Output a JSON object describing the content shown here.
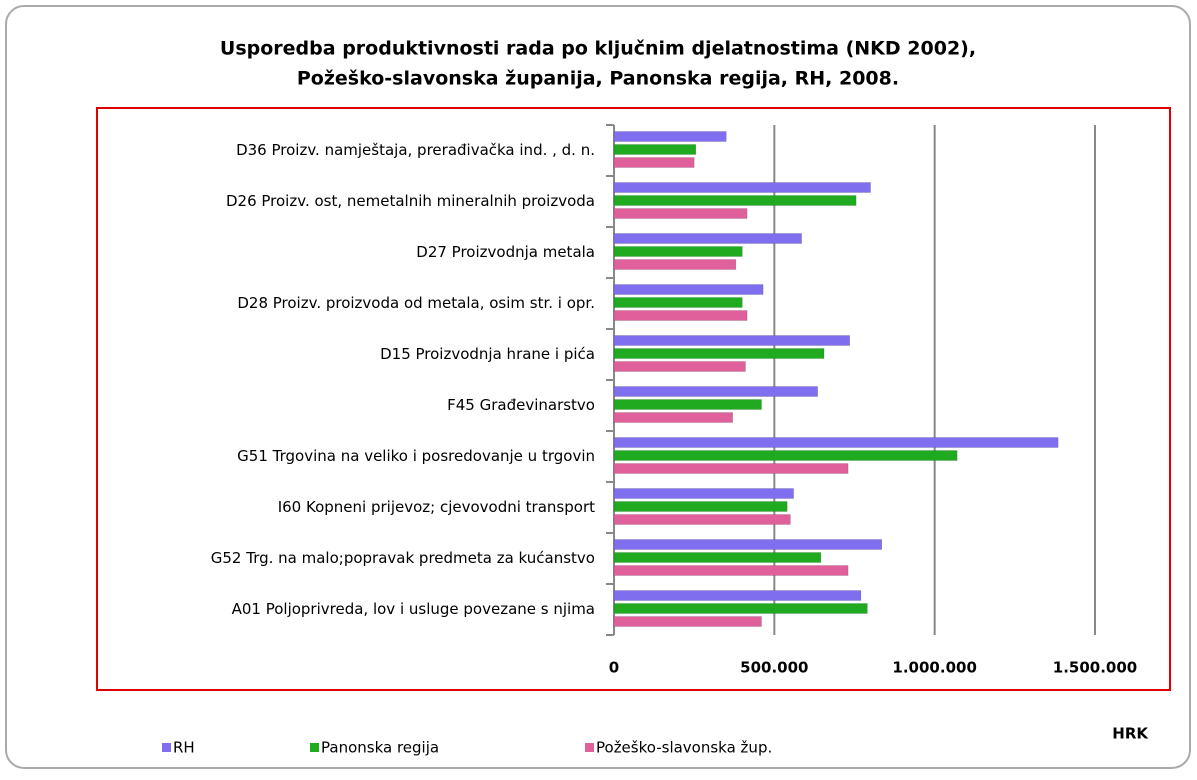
{
  "chart_data": {
    "type": "hbar",
    "title": [
      "Usporedba produktivnosti rada po ključnim djelatnostima (NKD 2002),",
      "Požeško-slavonska županija, Panonska regija, RH, 2008."
    ],
    "xlabel": "HRK",
    "categories": [
      "D36 Proizv. namještaja, prerađivačka ind. , d. n.",
      "D26 Proizv. ost, nemetalnih mineralnih proizvoda",
      "D27 Proizvodnja metala",
      "D28 Proizv. proizvoda od metala, osim str. i opr.",
      "D15 Proizvodnja hrane i pića",
      "F45 Građevinarstvo",
      "G51  Trgovina na veliko i posredovanje u trgovin",
      "I60 Kopneni prijevoz; cjevovodni transport",
      "G52 Trg. na malo;popravak predmeta za kućanstvo",
      "A01 Poljoprivreda, lov i usluge povezane s njima"
    ],
    "series": [
      {
        "name": "RH",
        "color": "#7f6fef",
        "values": [
          350000,
          800000,
          585000,
          465000,
          735000,
          635000,
          1385000,
          560000,
          835000,
          770000
        ]
      },
      {
        "name": "Panonska regija",
        "color": "#1faa1f",
        "values": [
          255000,
          755000,
          400000,
          400000,
          655000,
          460000,
          1070000,
          540000,
          645000,
          790000
        ]
      },
      {
        "name": "Požeško-slavonska žup.",
        "color": "#e0609c",
        "values": [
          250000,
          415000,
          380000,
          415000,
          410000,
          370000,
          730000,
          550000,
          730000,
          460000
        ]
      }
    ],
    "xlim": [
      0,
      1500000
    ],
    "xticks": [
      0,
      {
        "value": 500000,
        "label": "500.000"
      },
      {
        "value": 1000000,
        "label": "1.000.000"
      },
      {
        "value": 1500000,
        "label": "1.500.000"
      }
    ],
    "grid": true,
    "legend": "bottom"
  }
}
